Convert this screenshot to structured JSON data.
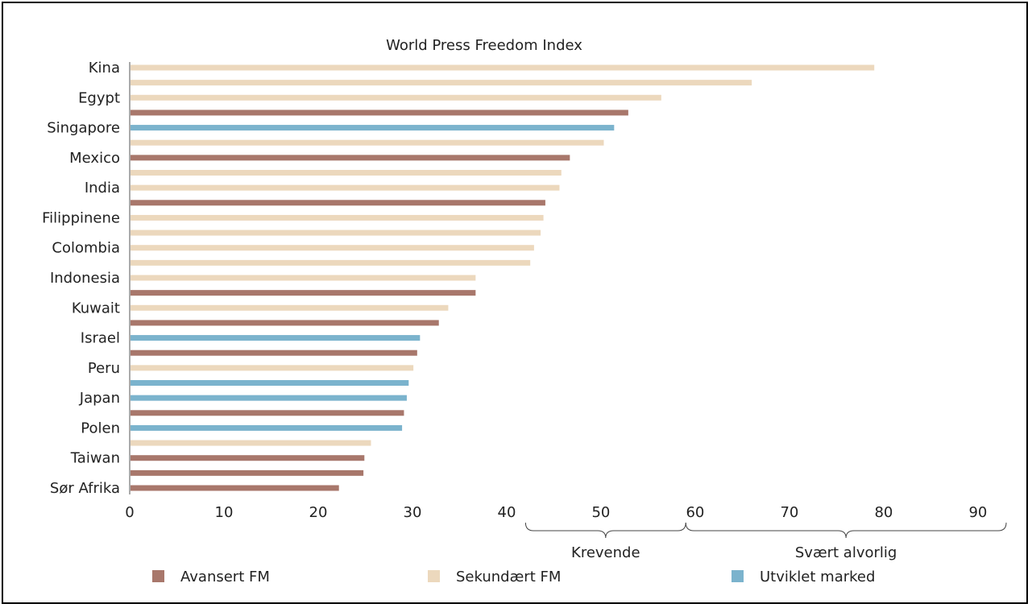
{
  "chart_data": {
    "type": "bar",
    "orientation": "horizontal",
    "title": "World Press Freedom Index",
    "y_labels": [
      "Kina",
      "Egypt",
      "Singapore",
      "Mexico",
      "India",
      "Filippinene",
      "Colombia",
      "Indonesia",
      "Kuwait",
      "Israel",
      "Peru",
      "Japan",
      "Polen",
      "Taiwan",
      "Sør Afrika"
    ],
    "bars": [
      {
        "value": 79.0,
        "group": "Sekundært FM"
      },
      {
        "value": 66.0,
        "group": "Sekundært FM"
      },
      {
        "value": 56.4,
        "group": "Sekundært FM"
      },
      {
        "value": 52.9,
        "group": "Avansert FM"
      },
      {
        "value": 51.4,
        "group": "Utviklet marked"
      },
      {
        "value": 50.3,
        "group": "Sekundært FM"
      },
      {
        "value": 46.7,
        "group": "Avansert FM"
      },
      {
        "value": 45.8,
        "group": "Sekundært FM"
      },
      {
        "value": 45.6,
        "group": "Sekundært FM"
      },
      {
        "value": 44.1,
        "group": "Avansert FM"
      },
      {
        "value": 43.9,
        "group": "Sekundært FM"
      },
      {
        "value": 43.6,
        "group": "Sekundært FM"
      },
      {
        "value": 42.9,
        "group": "Sekundært FM"
      },
      {
        "value": 42.5,
        "group": "Sekundært FM"
      },
      {
        "value": 36.7,
        "group": "Sekundært FM"
      },
      {
        "value": 36.7,
        "group": "Avansert FM"
      },
      {
        "value": 33.8,
        "group": "Sekundært FM"
      },
      {
        "value": 32.8,
        "group": "Avansert FM"
      },
      {
        "value": 30.8,
        "group": "Utviklet marked"
      },
      {
        "value": 30.5,
        "group": "Avansert FM"
      },
      {
        "value": 30.1,
        "group": "Sekundært FM"
      },
      {
        "value": 29.6,
        "group": "Utviklet marked"
      },
      {
        "value": 29.4,
        "group": "Utviklet marked"
      },
      {
        "value": 29.1,
        "group": "Avansert FM"
      },
      {
        "value": 28.9,
        "group": "Utviklet marked"
      },
      {
        "value": 25.6,
        "group": "Sekundært FM"
      },
      {
        "value": 24.9,
        "group": "Avansert FM"
      },
      {
        "value": 24.8,
        "group": "Avansert FM"
      },
      {
        "value": 22.2,
        "group": "Avansert FM"
      }
    ],
    "x_ticks": [
      0,
      10,
      20,
      30,
      40,
      50,
      60,
      70,
      80,
      90
    ],
    "xlim": [
      0,
      93
    ],
    "bands": [
      {
        "label": "Krevende",
        "from": 42,
        "to": 59
      },
      {
        "label": "Svært alvorlig",
        "from": 59,
        "to": 93
      }
    ],
    "legend": [
      {
        "name": "Avansert FM",
        "color": "#a8776b"
      },
      {
        "name": "Sekundært FM",
        "color": "#ecd8bd"
      },
      {
        "name": "Utviklet marked",
        "color": "#7bb3cd"
      }
    ],
    "legend_position": "bottom"
  }
}
